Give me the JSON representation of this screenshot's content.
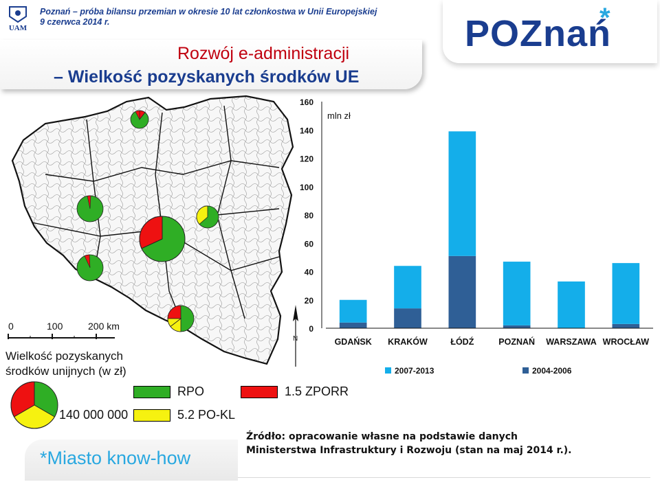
{
  "header": {
    "caption_line1": "Poznań – próba bilansu przemian w okresie 10 lat członkostwa w Unii Europejskiej",
    "caption_line2": "9 czerwca 2014 r.",
    "title_line1": "Rozwój e-administracji",
    "title_line2": "– Wielkość pozyskanych środków UE",
    "university_logo_text": "UAM",
    "city_logo_text": "POZnań",
    "city_logo_star": "*"
  },
  "map": {
    "scale_labels": [
      "0",
      "100",
      "200 km"
    ],
    "north_label": "N",
    "legend_title": "Wielkość pozyskanych środków unijnych (w zł)",
    "legend_size_label": "140 000 000",
    "legend_items": [
      {
        "label": "RPO",
        "color": "#2fae25"
      },
      {
        "label": "1.5 ZPORR",
        "color": "#ee1111"
      },
      {
        "label": "5.2 PO-KL",
        "color": "#f6f210"
      }
    ]
  },
  "chart_data": {
    "type": "bar",
    "stacked": true,
    "unit_label": "mln zł",
    "categories": [
      "GDAŃSK",
      "KRAKÓW",
      "ŁÓDŹ",
      "POZNAŃ",
      "WARSZAWA",
      "WROCŁAW"
    ],
    "series": [
      {
        "name": "2004-2006",
        "color": "#2f5f96",
        "values": [
          4,
          14,
          51,
          2,
          0,
          3
        ]
      },
      {
        "name": "2007-2013",
        "color": "#14aeea",
        "values": [
          16,
          30,
          88,
          45,
          33,
          43
        ]
      }
    ],
    "ylim": [
      0,
      160
    ],
    "yticks": [
      0,
      20,
      40,
      60,
      80,
      100,
      120,
      140,
      160
    ],
    "legend_order": [
      "2007-2013",
      "2004-2006"
    ],
    "legend_position": "bottom",
    "grid": false
  },
  "source": {
    "line1": "Źródło: opracowanie własne na podstawie danych",
    "line2": "Ministerstwa Infrastruktury i Rozwoju (stan na maj 2014 r.)."
  },
  "footer": {
    "brand_text": "*Miasto know-how"
  }
}
